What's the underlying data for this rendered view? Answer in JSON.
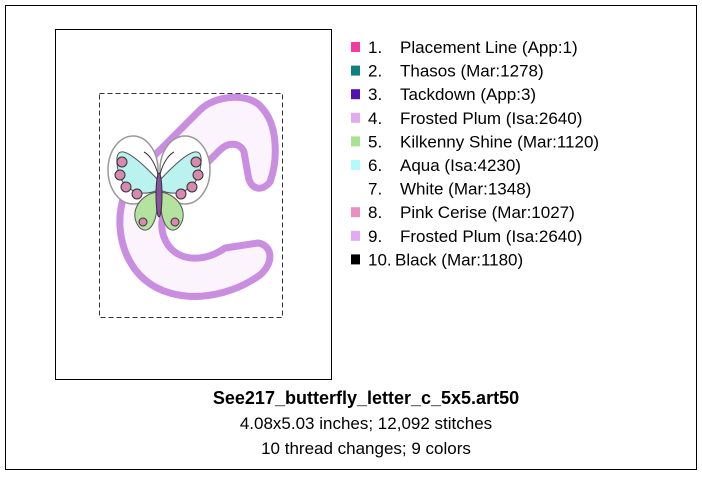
{
  "threads": [
    {
      "number": "1.",
      "name": "Placement Line (App:1)",
      "color": "#f23ca0"
    },
    {
      "number": "2.",
      "name": "Thasos (Mar:1278)",
      "color": "#0f7f80"
    },
    {
      "number": "3.",
      "name": "Tackdown (App:3)",
      "color": "#5510b4"
    },
    {
      "number": "4.",
      "name": "Frosted Plum (Isa:2640)",
      "color": "#e2aaf2"
    },
    {
      "number": "5.",
      "name": "Kilkenny Shine (Mar:1120)",
      "color": "#a8e290"
    },
    {
      "number": "6.",
      "name": "Aqua (Isa:4230)",
      "color": "#b4fafa"
    },
    {
      "number": "7.",
      "name": "White (Mar:1348)",
      "color": "#ffffff"
    },
    {
      "number": "8.",
      "name": "Pink Cerise (Mar:1027)",
      "color": "#e890c4"
    },
    {
      "number": "9.",
      "name": "Frosted Plum (Isa:2640)",
      "color": "#e2aaf2"
    },
    {
      "number": "10.",
      "name": "Black (Mar:1180)",
      "color": "#000000"
    }
  ],
  "file_name": "See217_butterfly_letter_c_5x5.art50",
  "size_line": "4.08x5.03 inches; 12,092 stitches",
  "changes_line": "10 thread changes; 9 colors"
}
